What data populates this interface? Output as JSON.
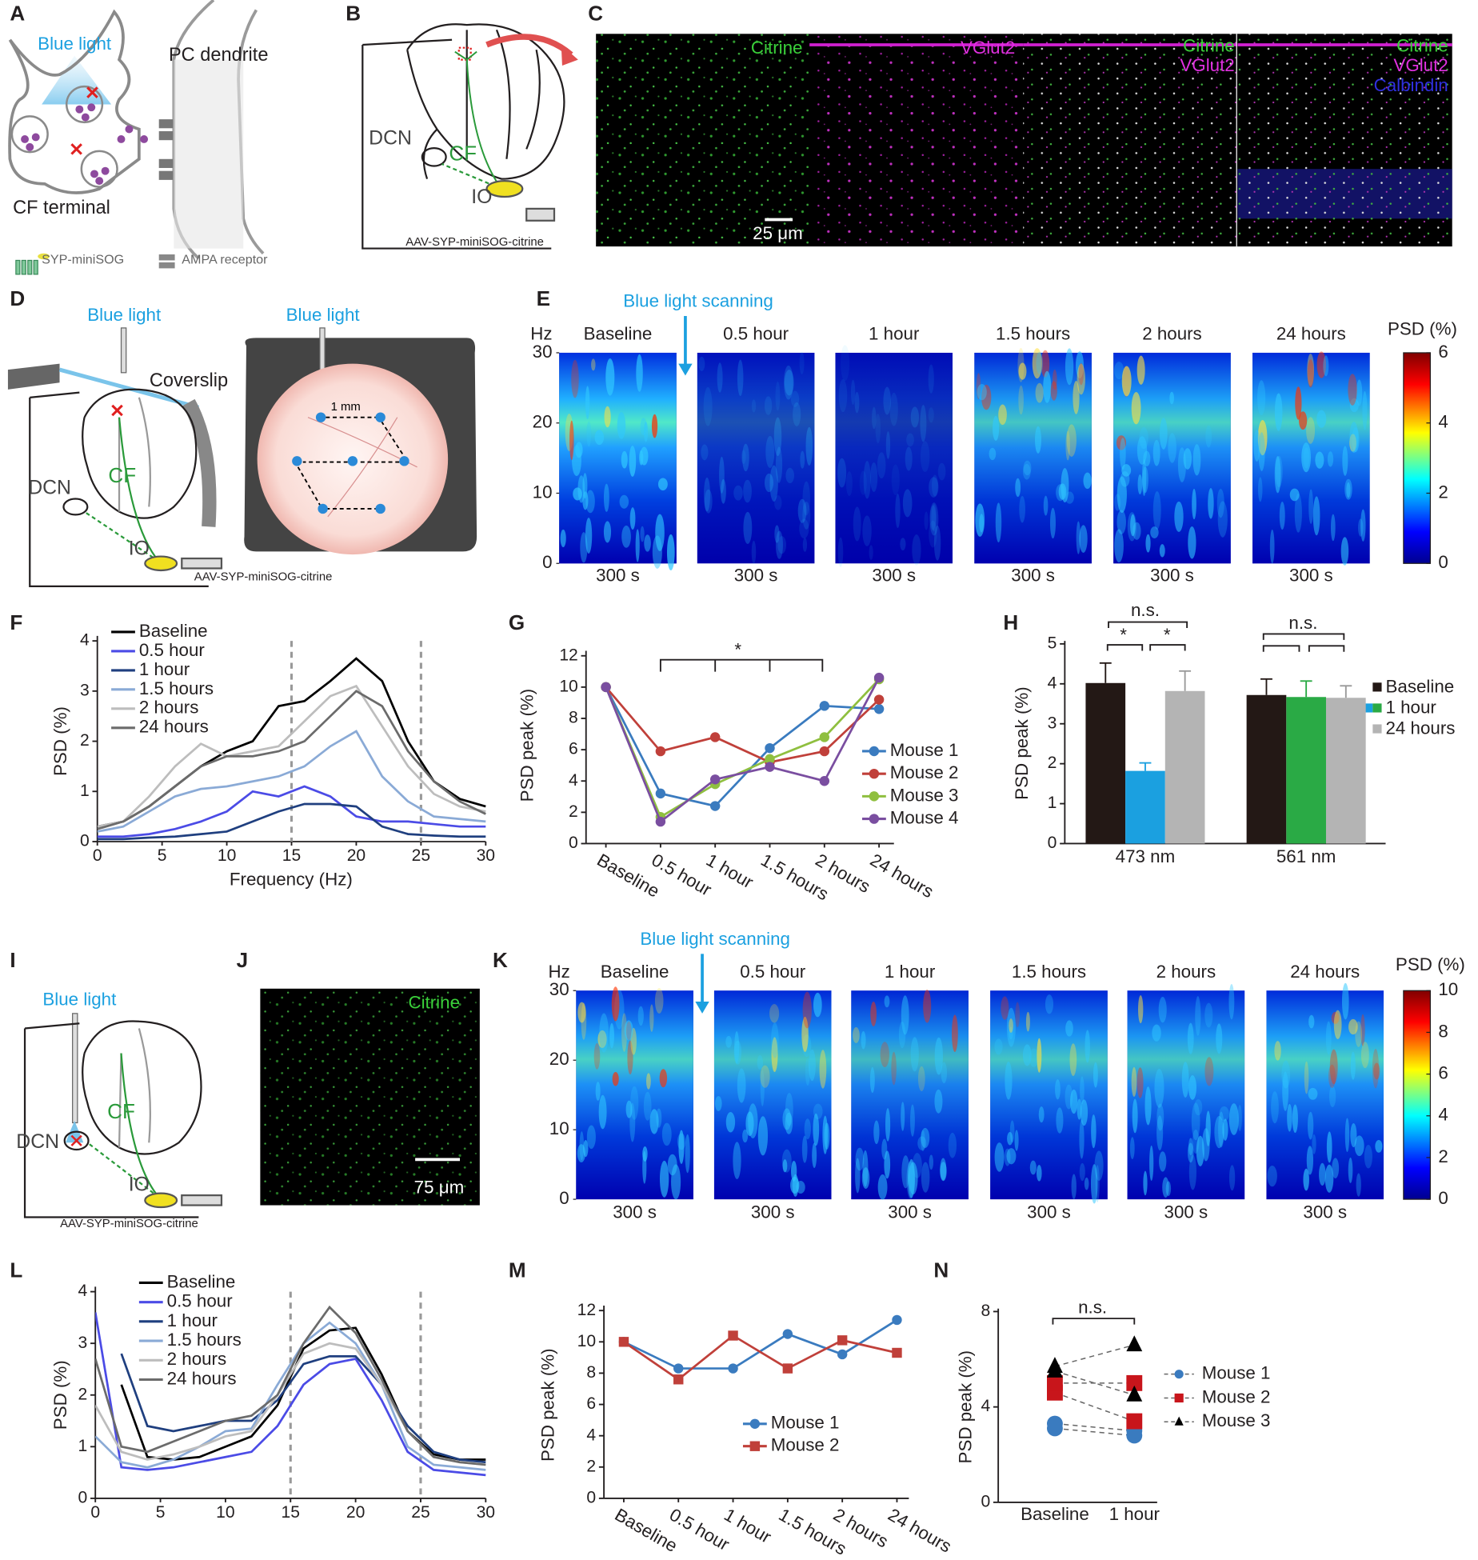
{
  "panel_labels": [
    "A",
    "B",
    "C",
    "D",
    "E",
    "F",
    "G",
    "H",
    "I",
    "J",
    "K",
    "L",
    "M",
    "N"
  ],
  "diagram_A": {
    "light": "Blue light",
    "dendrite": "PC dendrite",
    "terminal": "CF terminal",
    "legend": [
      "SYP-miniSOG",
      "AMPA receptor"
    ]
  },
  "diagram_B": {
    "dcn": "DCN",
    "cf": "CF",
    "io": "IO",
    "virus": "AAV-SYP-miniSOG-citrine"
  },
  "images_C": {
    "channels": [
      [
        "Citrine"
      ],
      [
        "VGlut2"
      ],
      [
        "Citrine",
        "VGlut2"
      ],
      [
        "Citrine",
        "VGlut2",
        "Calbindin"
      ]
    ],
    "scale_bar": "25 μm"
  },
  "diagram_D": {
    "light": "Blue light",
    "coverslip": "Coverslip",
    "dcn": "DCN",
    "cf": "CF",
    "io": "IO",
    "virus": "AAV-SYP-miniSOG-citrine",
    "light_top": "Blue light",
    "distance": "1 mm"
  },
  "diagram_I": {
    "light": "Blue light",
    "dcn": "DCN",
    "cf": "CF",
    "io": "IO",
    "virus": "AAV-SYP-miniSOG-citrine"
  },
  "image_J": {
    "channel": "Citrine",
    "scale_bar": "75 μm"
  },
  "chart_data": [
    {
      "type": "spectrogram",
      "annotation": "Blue light scanning",
      "ylabel": "Hz",
      "ylim": [
        0,
        30
      ],
      "yticks": [
        0,
        10,
        20,
        30
      ],
      "panels": [
        "Baseline",
        "0.5 hour",
        "1 hour",
        "1.5 hours",
        "2 hours",
        "24 hours"
      ],
      "xlabels": [
        "300 s",
        "300 s",
        "300 s",
        "300 s",
        "300 s",
        "300 s"
      ],
      "colorbar_label": "PSD (%)",
      "clim": [
        0,
        6
      ],
      "cticks": [
        0,
        2,
        4,
        6
      ]
    },
    {
      "type": "line",
      "xlabel": "Frequency (Hz)",
      "ylabel": "PSD (%)",
      "xlim": [
        0,
        30
      ],
      "ylim": [
        0,
        4
      ],
      "xticks": [
        0,
        5,
        10,
        15,
        20,
        25,
        30
      ],
      "yticks": [
        0,
        1,
        2,
        3,
        4
      ],
      "vlines": [
        15,
        25
      ],
      "x": [
        0,
        2,
        4,
        6,
        8,
        10,
        12,
        14,
        16,
        18,
        20,
        22,
        24,
        26,
        28,
        30
      ],
      "series": [
        {
          "name": "Baseline",
          "color": "#000000",
          "values": [
            0.3,
            0.4,
            0.7,
            1.1,
            1.5,
            1.8,
            2.0,
            2.7,
            2.8,
            3.2,
            3.65,
            3.2,
            2.0,
            1.2,
            0.85,
            0.7
          ]
        },
        {
          "name": "0.5 hour",
          "color": "#4b4be6",
          "values": [
            0.1,
            0.1,
            0.15,
            0.25,
            0.4,
            0.6,
            1.0,
            0.9,
            1.1,
            0.9,
            0.5,
            0.4,
            0.4,
            0.35,
            0.3,
            0.3
          ]
        },
        {
          "name": "1 hour",
          "color": "#1f3f7f",
          "values": [
            0.05,
            0.05,
            0.08,
            0.1,
            0.15,
            0.2,
            0.4,
            0.6,
            0.75,
            0.75,
            0.7,
            0.3,
            0.15,
            0.12,
            0.1,
            0.1
          ]
        },
        {
          "name": "1.5 hours",
          "color": "#8aaad6",
          "values": [
            0.2,
            0.3,
            0.6,
            0.9,
            1.05,
            1.1,
            1.2,
            1.3,
            1.5,
            1.9,
            2.2,
            1.3,
            0.8,
            0.5,
            0.45,
            0.4
          ]
        },
        {
          "name": "2 hours",
          "color": "#bdbdbd",
          "values": [
            0.3,
            0.4,
            0.9,
            1.5,
            1.95,
            1.7,
            1.8,
            1.9,
            2.4,
            2.9,
            3.1,
            2.3,
            1.5,
            0.95,
            0.7,
            0.6
          ]
        },
        {
          "name": "24 hours",
          "color": "#6b6b6b",
          "values": [
            0.25,
            0.4,
            0.7,
            1.1,
            1.5,
            1.7,
            1.7,
            1.8,
            2.0,
            2.5,
            3.0,
            2.7,
            1.8,
            1.2,
            0.8,
            0.55
          ]
        }
      ]
    },
    {
      "type": "line",
      "ylabel": "PSD peak (%)",
      "ylim": [
        0,
        12
      ],
      "yticks": [
        0,
        2,
        4,
        6,
        8,
        10,
        12
      ],
      "categories": [
        "Baseline",
        "0.5 hour",
        "1 hour",
        "1.5 hours",
        "2 hours",
        "24 hours"
      ],
      "annotations": [
        "*"
      ],
      "series": [
        {
          "name": "Mouse 1",
          "color": "#3a7bbf",
          "marker": "circle",
          "values": [
            10,
            3.2,
            2.4,
            6.1,
            8.8,
            8.6
          ]
        },
        {
          "name": "Mouse 2",
          "color": "#c0403a",
          "marker": "circle",
          "values": [
            10,
            5.9,
            6.8,
            5.2,
            5.9,
            9.2
          ]
        },
        {
          "name": "Mouse 3",
          "color": "#8fbf3f",
          "marker": "circle",
          "values": [
            10,
            1.7,
            3.8,
            5.4,
            6.8,
            10.5
          ]
        },
        {
          "name": "Mouse 4",
          "color": "#7a4ea0",
          "marker": "circle",
          "values": [
            10,
            1.4,
            4.1,
            4.9,
            4.0,
            10.6
          ]
        }
      ]
    },
    {
      "type": "bar",
      "ylabel": "PSD peak (%)",
      "ylim": [
        0,
        5
      ],
      "yticks": [
        0,
        1,
        2,
        3,
        4,
        5
      ],
      "categories": [
        "473 nm",
        "561 nm"
      ],
      "annotations": [
        "n.s.",
        "*",
        "*",
        "n.s."
      ],
      "series": [
        {
          "name": "Baseline",
          "color": "#231815",
          "values": [
            4.02,
            3.72
          ],
          "errors": [
            0.5,
            0.4
          ]
        },
        {
          "name": "1 hour",
          "colors": [
            "#1ba0e0",
            "#2aaa45"
          ],
          "values": [
            1.82,
            3.67
          ],
          "errors": [
            0.2,
            0.4
          ]
        },
        {
          "name": "24 hours",
          "color": "#b4b4b4",
          "values": [
            3.82,
            3.65
          ],
          "errors": [
            0.5,
            0.3
          ]
        }
      ]
    },
    {
      "type": "spectrogram",
      "annotation": "Blue light scanning",
      "ylabel": "Hz",
      "ylim": [
        0,
        30
      ],
      "yticks": [
        0,
        10,
        20,
        30
      ],
      "panels": [
        "Baseline",
        "0.5 hour",
        "1 hour",
        "1.5 hours",
        "2 hours",
        "24 hours"
      ],
      "xlabels": [
        "300 s",
        "300 s",
        "300 s",
        "300 s",
        "300 s",
        "300 s"
      ],
      "colorbar_label": "PSD (%)",
      "clim": [
        0,
        10
      ],
      "cticks": [
        0,
        2,
        4,
        6,
        8,
        10
      ]
    },
    {
      "type": "line",
      "ylabel": "PSD (%)",
      "xlim": [
        0,
        30
      ],
      "ylim": [
        0,
        4
      ],
      "xticks": [
        0,
        5,
        10,
        15,
        20,
        25,
        30
      ],
      "yticks": [
        0,
        1,
        2,
        3,
        4
      ],
      "vlines": [
        15,
        25
      ],
      "x": [
        0,
        2,
        4,
        6,
        8,
        10,
        12,
        14,
        16,
        18,
        20,
        22,
        24,
        26,
        28,
        30
      ],
      "series": [
        {
          "name": "Baseline",
          "color": "#000000",
          "values": [
            null,
            2.2,
            0.8,
            0.75,
            0.8,
            1.0,
            1.2,
            1.8,
            2.9,
            3.25,
            3.3,
            2.4,
            1.3,
            0.85,
            0.75,
            0.75
          ]
        },
        {
          "name": "0.5 hour",
          "color": "#4b4be6",
          "values": [
            3.6,
            0.6,
            0.55,
            0.6,
            0.7,
            0.8,
            0.9,
            1.4,
            2.2,
            2.6,
            2.7,
            1.9,
            0.9,
            0.55,
            0.5,
            0.45
          ]
        },
        {
          "name": "1 hour",
          "color": "#1f3f7f",
          "values": [
            null,
            2.8,
            1.4,
            1.3,
            1.4,
            1.5,
            1.5,
            1.9,
            2.6,
            2.75,
            2.75,
            2.2,
            1.4,
            0.9,
            0.75,
            0.7
          ]
        },
        {
          "name": "1.5 hours",
          "color": "#8aaad6",
          "values": [
            1.2,
            0.7,
            0.6,
            0.75,
            1.0,
            1.3,
            1.35,
            2.2,
            3.0,
            3.4,
            3.0,
            2.2,
            1.0,
            0.65,
            0.6,
            0.55
          ]
        },
        {
          "name": "2 hours",
          "color": "#bdbdbd",
          "values": [
            1.8,
            0.9,
            0.75,
            0.85,
            1.0,
            1.2,
            1.3,
            2.0,
            2.8,
            3.0,
            2.9,
            2.2,
            1.3,
            0.8,
            0.7,
            0.65
          ]
        },
        {
          "name": "24 hours",
          "color": "#6b6b6b",
          "values": [
            2.7,
            1.0,
            0.9,
            1.1,
            1.3,
            1.5,
            1.6,
            2.0,
            3.0,
            3.7,
            3.2,
            2.3,
            1.3,
            0.8,
            0.7,
            0.65
          ]
        }
      ]
    },
    {
      "type": "line",
      "ylabel": "PSD peak (%)",
      "ylim": [
        0,
        12
      ],
      "yticks": [
        0,
        2,
        4,
        6,
        8,
        10,
        12
      ],
      "categories": [
        "Baseline",
        "0.5 hour",
        "1 hour",
        "1.5 hours",
        "2 hours",
        "24 hours"
      ],
      "series": [
        {
          "name": "Mouse 1",
          "color": "#3a7bbf",
          "marker": "circle",
          "values": [
            10,
            8.3,
            8.3,
            10.5,
            9.2,
            11.4
          ]
        },
        {
          "name": "Mouse 2",
          "color": "#c0403a",
          "marker": "square",
          "values": [
            10,
            7.6,
            10.4,
            8.3,
            10.1,
            9.3
          ]
        }
      ]
    },
    {
      "type": "paired",
      "ylabel": "PSD peak (%)",
      "ylim": [
        0,
        8
      ],
      "yticks": [
        0,
        4,
        8
      ],
      "categories": [
        "Baseline",
        "1 hour"
      ],
      "annotations": [
        "n.s."
      ],
      "series": [
        {
          "name": "Mouse 1",
          "color": "#3a7bbf",
          "marker": "circle",
          "values": [
            [
              3.1,
              2.8
            ],
            [
              3.3,
              3.0
            ]
          ]
        },
        {
          "name": "Mouse 2",
          "color": "#c8151b",
          "marker": "square",
          "values": [
            [
              4.6,
              3.4
            ],
            [
              5.0,
              5.0
            ]
          ]
        },
        {
          "name": "Mouse 3",
          "color": "#000000",
          "marker": "triangle",
          "values": [
            [
              5.5,
              4.5
            ],
            [
              5.7,
              6.6
            ]
          ]
        }
      ]
    }
  ]
}
